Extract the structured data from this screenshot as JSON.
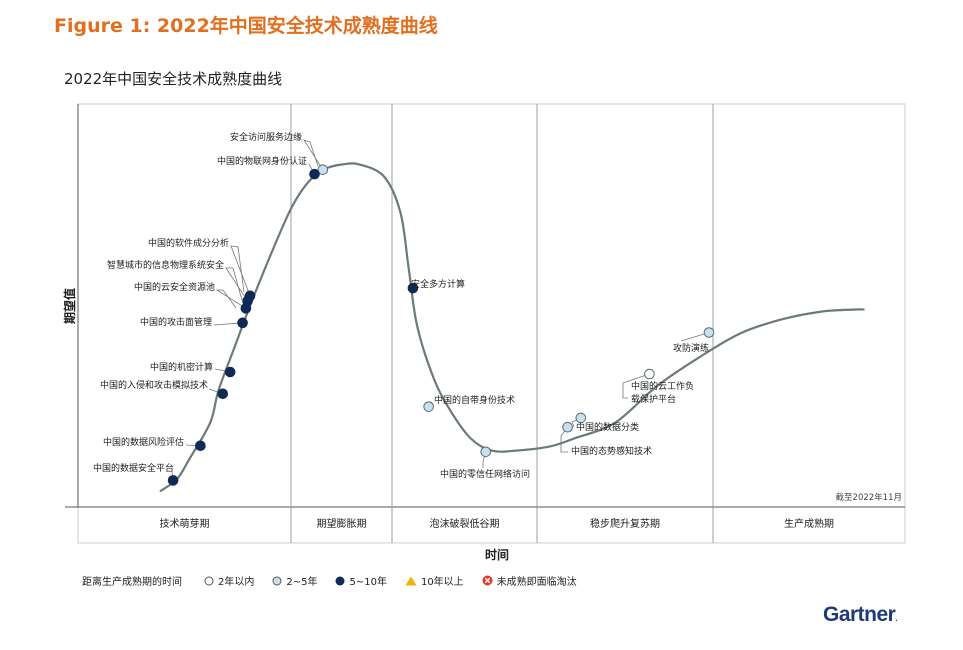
{
  "figure_title": "Figure 1: 2022年中国安全技术成熟度曲线",
  "brand": "Gartner",
  "brand_mark": ".",
  "legend": {
    "title": "距离生产成熟期的时间",
    "items": [
      {
        "label": "2年以内",
        "marker": "open-circle"
      },
      {
        "label": "2~5年",
        "marker": "light-blue-circle"
      },
      {
        "label": "5~10年",
        "marker": "navy-circle"
      },
      {
        "label": "10年以上",
        "marker": "yellow-triangle"
      },
      {
        "label": "未成熟即面临淘汰",
        "marker": "red-x-circle"
      }
    ]
  },
  "colors": {
    "accent": "#e0701f",
    "navy": "#0f2a55",
    "light_blue": "#c9e0ef",
    "curve": "#6c7a78",
    "grid": "#9aa0a3",
    "triangle": "#f0b400",
    "x_red": "#e23a2e",
    "brand": "#1e3a78"
  },
  "chart_data": {
    "type": "scatter",
    "title": "2022年中国安全技术成熟度曲线",
    "xlabel": "时间",
    "ylabel": "期望值",
    "note": "截至2022年11月",
    "phases": [
      "技术萌芽期",
      "期望膨胀期",
      "泡沫破裂低谷期",
      "稳步爬升复苏期",
      "生产成熟期"
    ],
    "xlim": [
      0,
      100
    ],
    "ylim": [
      0,
      100
    ],
    "grid": true,
    "legend_position": "bottom",
    "curve": [
      [
        10,
        4
      ],
      [
        12,
        7
      ],
      [
        13.5,
        12
      ],
      [
        16,
        21
      ],
      [
        17,
        29
      ],
      [
        19,
        40
      ],
      [
        21,
        51
      ],
      [
        24,
        66
      ],
      [
        26,
        75
      ],
      [
        28,
        81
      ],
      [
        30,
        84
      ],
      [
        32,
        85
      ],
      [
        34,
        85
      ],
      [
        37,
        82
      ],
      [
        39,
        73
      ],
      [
        40,
        59
      ],
      [
        41,
        45
      ],
      [
        43,
        32
      ],
      [
        45,
        24
      ],
      [
        47.5,
        17
      ],
      [
        50,
        14
      ],
      [
        53,
        14
      ],
      [
        57,
        15
      ],
      [
        60,
        17
      ],
      [
        65,
        21
      ],
      [
        70,
        30
      ],
      [
        75,
        37
      ],
      [
        80,
        43
      ],
      [
        85,
        46.5
      ],
      [
        90,
        48.5
      ],
      [
        94,
        49
      ],
      [
        95,
        49
      ]
    ],
    "series": [
      {
        "name": "2~5年",
        "points": [
          {
            "label": "安全访问服务边缘",
            "x": 29.6,
            "y": 83.7
          },
          {
            "label": "中国的自带身份技术",
            "x": 42.4,
            "y": 24.9
          },
          {
            "label": "中国的零信任网络访问",
            "x": 49.3,
            "y": 13.7
          },
          {
            "label": "中国的数据分类",
            "x": 60.8,
            "y": 22.1
          },
          {
            "label": "中国的态势感知技术",
            "x": 59.2,
            "y": 19.8
          },
          {
            "label": "攻防演练",
            "x": 76.3,
            "y": 43.3
          }
        ]
      },
      {
        "name": "5~10年",
        "points": [
          {
            "label": "中国的物联网身份认证",
            "x": 28.6,
            "y": 82.6
          },
          {
            "label": "中国的软件成分分析",
            "x": 20.8,
            "y": 52.4
          },
          {
            "label": "智慧城市的信息物理系统安全",
            "x": 20.5,
            "y": 51.1
          },
          {
            "label": "中国的云安全资源池",
            "x": 20.3,
            "y": 49.3
          },
          {
            "label": "中国的攻击面管理",
            "x": 19.9,
            "y": 45.7
          },
          {
            "label": "安全多方计算",
            "x": 40.5,
            "y": 54.3
          },
          {
            "label": "中国的机密计算",
            "x": 18.4,
            "y": 33.5
          },
          {
            "label": "中国的入侵和攻击模拟技术",
            "x": 17.5,
            "y": 28.1
          },
          {
            "label": "中国的数据风险评估",
            "x": 14.8,
            "y": 15.2
          },
          {
            "label": "中国的数据安全平台",
            "x": 11.5,
            "y": 6.6
          }
        ]
      },
      {
        "name": "2年以内",
        "points": [
          {
            "label": "中国的云工作负载保护平台",
            "x": 69.1,
            "y": 33.0
          }
        ]
      }
    ]
  }
}
